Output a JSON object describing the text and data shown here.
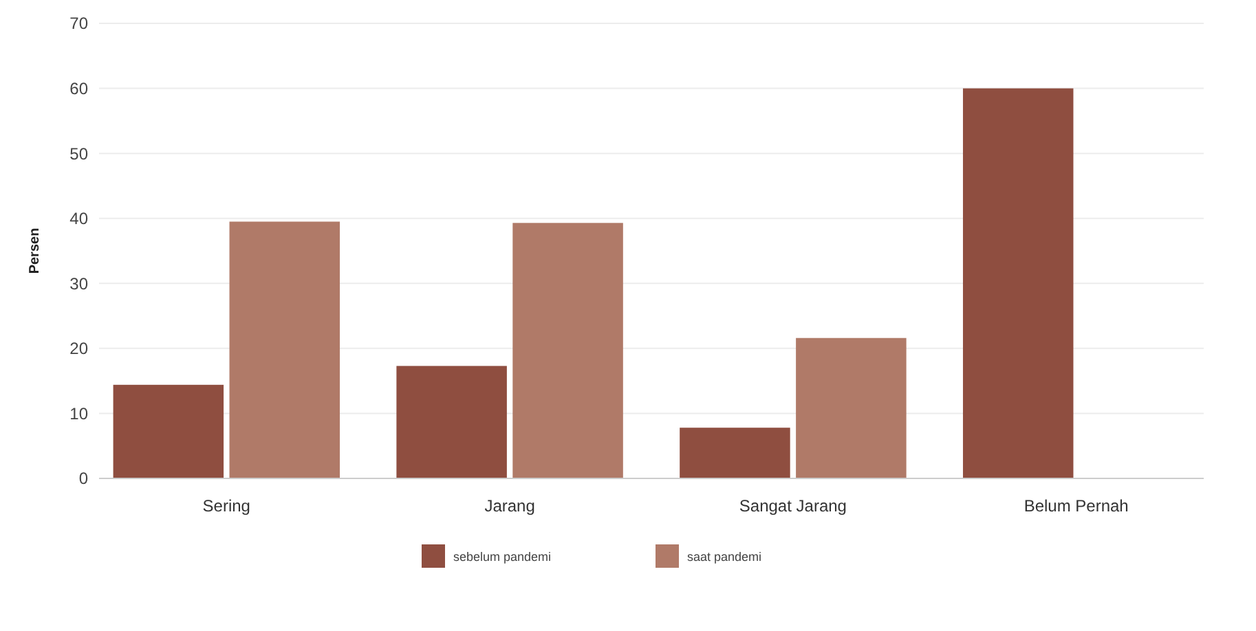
{
  "chart_data": {
    "type": "bar",
    "ylabel": "Persen",
    "categories": [
      "Sering",
      "Jarang",
      "Sangat Jarang",
      "Belum Pernah"
    ],
    "series": [
      {
        "name": "sebelum pandemi",
        "color": "#8f4e40",
        "values": [
          14.4,
          17.3,
          7.8,
          60
        ]
      },
      {
        "name": "saat pandemi",
        "color": "#b07a68",
        "values": [
          39.5,
          39.3,
          21.6,
          null
        ]
      }
    ],
    "ylim": [
      0,
      70
    ],
    "yticks": [
      0,
      10,
      20,
      30,
      40,
      50,
      60,
      70
    ],
    "grid": "y",
    "legend": "bottom"
  }
}
